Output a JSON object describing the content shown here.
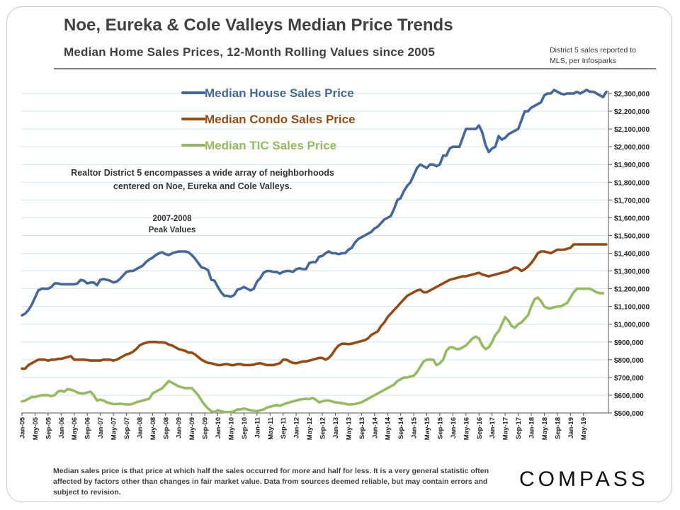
{
  "header": {
    "title": "Noe, Eureka & Cole Valleys Median Price Trends",
    "subtitle": "Median Home Sales Prices, 12-Month Rolling Values since 2005",
    "source_line1": "District 5 sales reported to",
    "source_line2": "MLS, per Infosparks"
  },
  "footer": {
    "note": "Median sales price is that price at which half the sales occurred for more and half for less. It is a very general statistic often affected by factors other than changes in fair market value. Data from sources deemed reliable, but may contain errors and subject to revision.",
    "brand": "COMPASS"
  },
  "colors": {
    "house": "#44689A",
    "condo": "#974B14",
    "tic": "#94BB5E",
    "grid": "#D6E3EE"
  },
  "chart_data": {
    "type": "line",
    "title": "Noe, Eureka & Cole Valleys Median Price Trends",
    "ylim": [
      500000,
      2300000
    ],
    "ytick_step": 100000,
    "yticks": [
      "$500,000",
      "$600,000",
      "$700,000",
      "$800,000",
      "$900,000",
      "$1,000,000",
      "$1,100,000",
      "$1,200,000",
      "$1,300,000",
      "$1,400,000",
      "$1,500,000",
      "$1,600,000",
      "$1,700,000",
      "$1,800,000",
      "$1,900,000",
      "$2,000,000",
      "$2,100,000",
      "$2,200,000",
      "$2,300,000"
    ],
    "x_start": "Jan-05",
    "x_end": "May-19",
    "x_labels": [
      "Jan-05",
      "May-05",
      "Sep-05",
      "Jan-06",
      "May-06",
      "Sep-06",
      "Jan-07",
      "May-07",
      "Sep-07",
      "Jan-08",
      "May-08",
      "Sep-08",
      "Jan-09",
      "May-09",
      "Sep-09",
      "Jan-10",
      "May-10",
      "Sep-10",
      "Jan-11",
      "May-11",
      "Sep-11",
      "Jan-12",
      "May-12",
      "Sep-12",
      "Jan-13",
      "May-13",
      "Sep-13",
      "Jan-14",
      "May-14",
      "Sep-14",
      "Jan-15",
      "May-15",
      "Sep-15",
      "Jan-16",
      "May-16",
      "Sep-16",
      "Jan-17",
      "May-17",
      "Sep-17",
      "Jan-18",
      "May-18",
      "Sep-18",
      "Jan-19",
      "May-19"
    ],
    "series": [
      {
        "name": "Median House Sales Price",
        "key": "house",
        "values": [
          1050000,
          1060000,
          1080000,
          1110000,
          1150000,
          1190000,
          1200000,
          1200000,
          1200000,
          1210000,
          1230000,
          1230000,
          1225000,
          1225000,
          1225000,
          1225000,
          1225000,
          1230000,
          1250000,
          1245000,
          1230000,
          1235000,
          1235000,
          1220000,
          1250000,
          1255000,
          1250000,
          1245000,
          1235000,
          1240000,
          1255000,
          1275000,
          1295000,
          1300000,
          1300000,
          1310000,
          1320000,
          1330000,
          1350000,
          1365000,
          1375000,
          1390000,
          1400000,
          1405000,
          1395000,
          1390000,
          1400000,
          1405000,
          1410000,
          1410000,
          1410000,
          1405000,
          1390000,
          1370000,
          1345000,
          1320000,
          1315000,
          1305000,
          1250000,
          1245000,
          1210000,
          1180000,
          1160000,
          1160000,
          1155000,
          1165000,
          1195000,
          1200000,
          1210000,
          1200000,
          1190000,
          1200000,
          1240000,
          1260000,
          1290000,
          1300000,
          1300000,
          1295000,
          1295000,
          1285000,
          1295000,
          1300000,
          1300000,
          1295000,
          1310000,
          1315000,
          1310000,
          1310000,
          1345000,
          1350000,
          1350000,
          1380000,
          1385000,
          1400000,
          1410000,
          1400000,
          1400000,
          1395000,
          1400000,
          1400000,
          1420000,
          1430000,
          1460000,
          1480000,
          1490000,
          1500000,
          1510000,
          1520000,
          1540000,
          1550000,
          1570000,
          1590000,
          1600000,
          1610000,
          1650000,
          1700000,
          1710000,
          1750000,
          1780000,
          1800000,
          1840000,
          1880000,
          1900000,
          1890000,
          1880000,
          1900000,
          1900000,
          1890000,
          1900000,
          1950000,
          1950000,
          1990000,
          2000000,
          2000000,
          2000000,
          2050000,
          2100000,
          2100000,
          2100000,
          2100000,
          2120000,
          2080000,
          2010000,
          1970000,
          1990000,
          2000000,
          2060000,
          2040000,
          2050000,
          2070000,
          2080000,
          2090000,
          2100000,
          2150000,
          2200000,
          2200000,
          2220000,
          2230000,
          2240000,
          2250000,
          2290000,
          2300000,
          2300000,
          2320000,
          2310000,
          2300000,
          2295000,
          2300000,
          2300000,
          2300000,
          2310000,
          2300000,
          2310000,
          2320000,
          2310000,
          2310000,
          2300000,
          2290000,
          2280000,
          2310000
        ]
      },
      {
        "name": "Median Condo Sales Price",
        "key": "condo",
        "values": [
          750000,
          750000,
          770000,
          780000,
          790000,
          800000,
          800000,
          800000,
          795000,
          800000,
          800000,
          805000,
          805000,
          810000,
          815000,
          820000,
          800000,
          800000,
          800000,
          800000,
          798000,
          795000,
          795000,
          795000,
          795000,
          800000,
          800000,
          800000,
          795000,
          800000,
          810000,
          820000,
          830000,
          835000,
          845000,
          860000,
          880000,
          890000,
          895000,
          900000,
          900000,
          900000,
          898000,
          898000,
          895000,
          885000,
          880000,
          870000,
          860000,
          855000,
          850000,
          840000,
          840000,
          830000,
          815000,
          800000,
          790000,
          782000,
          780000,
          775000,
          770000,
          770000,
          775000,
          775000,
          770000,
          770000,
          775000,
          775000,
          770000,
          770000,
          770000,
          772000,
          778000,
          780000,
          775000,
          770000,
          770000,
          770000,
          775000,
          780000,
          800000,
          800000,
          790000,
          782000,
          780000,
          785000,
          790000,
          790000,
          795000,
          800000,
          805000,
          810000,
          810000,
          800000,
          810000,
          830000,
          860000,
          880000,
          890000,
          890000,
          888000,
          890000,
          895000,
          900000,
          905000,
          910000,
          920000,
          940000,
          950000,
          960000,
          990000,
          1010000,
          1040000,
          1060000,
          1080000,
          1100000,
          1120000,
          1140000,
          1160000,
          1170000,
          1180000,
          1190000,
          1195000,
          1180000,
          1180000,
          1190000,
          1200000,
          1210000,
          1220000,
          1230000,
          1240000,
          1250000,
          1255000,
          1260000,
          1265000,
          1270000,
          1270000,
          1275000,
          1280000,
          1285000,
          1290000,
          1280000,
          1275000,
          1270000,
          1275000,
          1280000,
          1285000,
          1290000,
          1295000,
          1300000,
          1310000,
          1320000,
          1315000,
          1300000,
          1310000,
          1325000,
          1345000,
          1370000,
          1400000,
          1410000,
          1410000,
          1405000,
          1400000,
          1410000,
          1420000,
          1420000,
          1420000,
          1425000,
          1430000,
          1450000,
          1450000,
          1450000,
          1450000,
          1450000,
          1450000,
          1450000,
          1450000,
          1450000,
          1450000,
          1450000
        ]
      },
      {
        "name": "Median TIC Sales Price",
        "key": "tic",
        "values": [
          565000,
          570000,
          580000,
          590000,
          590000,
          595000,
          600000,
          600000,
          600000,
          595000,
          600000,
          620000,
          625000,
          620000,
          635000,
          630000,
          625000,
          615000,
          610000,
          610000,
          615000,
          620000,
          600000,
          570000,
          575000,
          570000,
          560000,
          555000,
          550000,
          550000,
          552000,
          550000,
          548000,
          548000,
          552000,
          560000,
          565000,
          570000,
          575000,
          580000,
          610000,
          620000,
          630000,
          640000,
          660000,
          680000,
          670000,
          660000,
          650000,
          645000,
          640000,
          640000,
          640000,
          620000,
          600000,
          570000,
          545000,
          525000,
          510000,
          505000,
          515000,
          510000,
          505000,
          505000,
          505000,
          510000,
          520000,
          520000,
          525000,
          520000,
          515000,
          512000,
          510000,
          515000,
          520000,
          530000,
          535000,
          540000,
          545000,
          540000,
          548000,
          555000,
          560000,
          565000,
          570000,
          575000,
          578000,
          580000,
          578000,
          585000,
          575000,
          560000,
          565000,
          570000,
          570000,
          565000,
          560000,
          558000,
          555000,
          552000,
          548000,
          548000,
          550000,
          555000,
          560000,
          570000,
          580000,
          590000,
          600000,
          610000,
          620000,
          630000,
          640000,
          650000,
          660000,
          680000,
          690000,
          700000,
          700000,
          705000,
          710000,
          730000,
          760000,
          790000,
          800000,
          800000,
          800000,
          770000,
          780000,
          800000,
          850000,
          870000,
          870000,
          860000,
          860000,
          870000,
          880000,
          900000,
          920000,
          930000,
          920000,
          880000,
          860000,
          870000,
          900000,
          940000,
          960000,
          1000000,
          1040000,
          1020000,
          990000,
          980000,
          1000000,
          1010000,
          1030000,
          1050000,
          1100000,
          1140000,
          1150000,
          1130000,
          1100000,
          1090000,
          1090000,
          1095000,
          1100000,
          1100000,
          1110000,
          1120000,
          1150000,
          1180000,
          1200000,
          1200000,
          1200000,
          1200000,
          1200000,
          1190000,
          1180000,
          1175000,
          1175000
        ]
      }
    ],
    "annotations": [
      {
        "id": "district",
        "lines": [
          "Realtor District 5 encompasses a wide array of neighborhoods",
          "centered on Noe, Eureka and Cole Valleys."
        ]
      },
      {
        "id": "peak",
        "lines": [
          "2007-2008",
          "Peak Values"
        ]
      }
    ],
    "legend_position": "top-left"
  }
}
